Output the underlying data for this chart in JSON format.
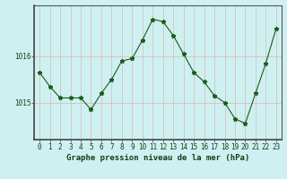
{
  "x": [
    0,
    1,
    2,
    3,
    4,
    5,
    6,
    7,
    8,
    9,
    10,
    11,
    12,
    13,
    14,
    15,
    16,
    17,
    18,
    19,
    20,
    21,
    22,
    23
  ],
  "y": [
    1015.65,
    1015.35,
    1015.1,
    1015.1,
    1015.1,
    1014.85,
    1015.2,
    1015.5,
    1015.9,
    1015.95,
    1016.35,
    1016.8,
    1016.75,
    1016.45,
    1016.05,
    1015.65,
    1015.45,
    1015.15,
    1015.0,
    1014.65,
    1014.55,
    1015.2,
    1015.85,
    1016.6
  ],
  "line_color": "#1a5c1a",
  "marker": "*",
  "marker_size": 3.5,
  "background_color": "#cff0f0",
  "grid_color": "#b8b0b0",
  "xlabel": "Graphe pression niveau de la mer (hPa)",
  "xlabel_fontsize": 6.5,
  "tick_fontsize": 5.5,
  "ytick_labels": [
    "1015",
    "1016"
  ],
  "ylim": [
    1014.2,
    1017.1
  ],
  "xlim": [
    -0.5,
    23.5
  ],
  "yticks": [
    1015,
    1016
  ],
  "xticks": [
    0,
    1,
    2,
    3,
    4,
    5,
    6,
    7,
    8,
    9,
    10,
    11,
    12,
    13,
    14,
    15,
    16,
    17,
    18,
    19,
    20,
    21,
    22,
    23
  ]
}
